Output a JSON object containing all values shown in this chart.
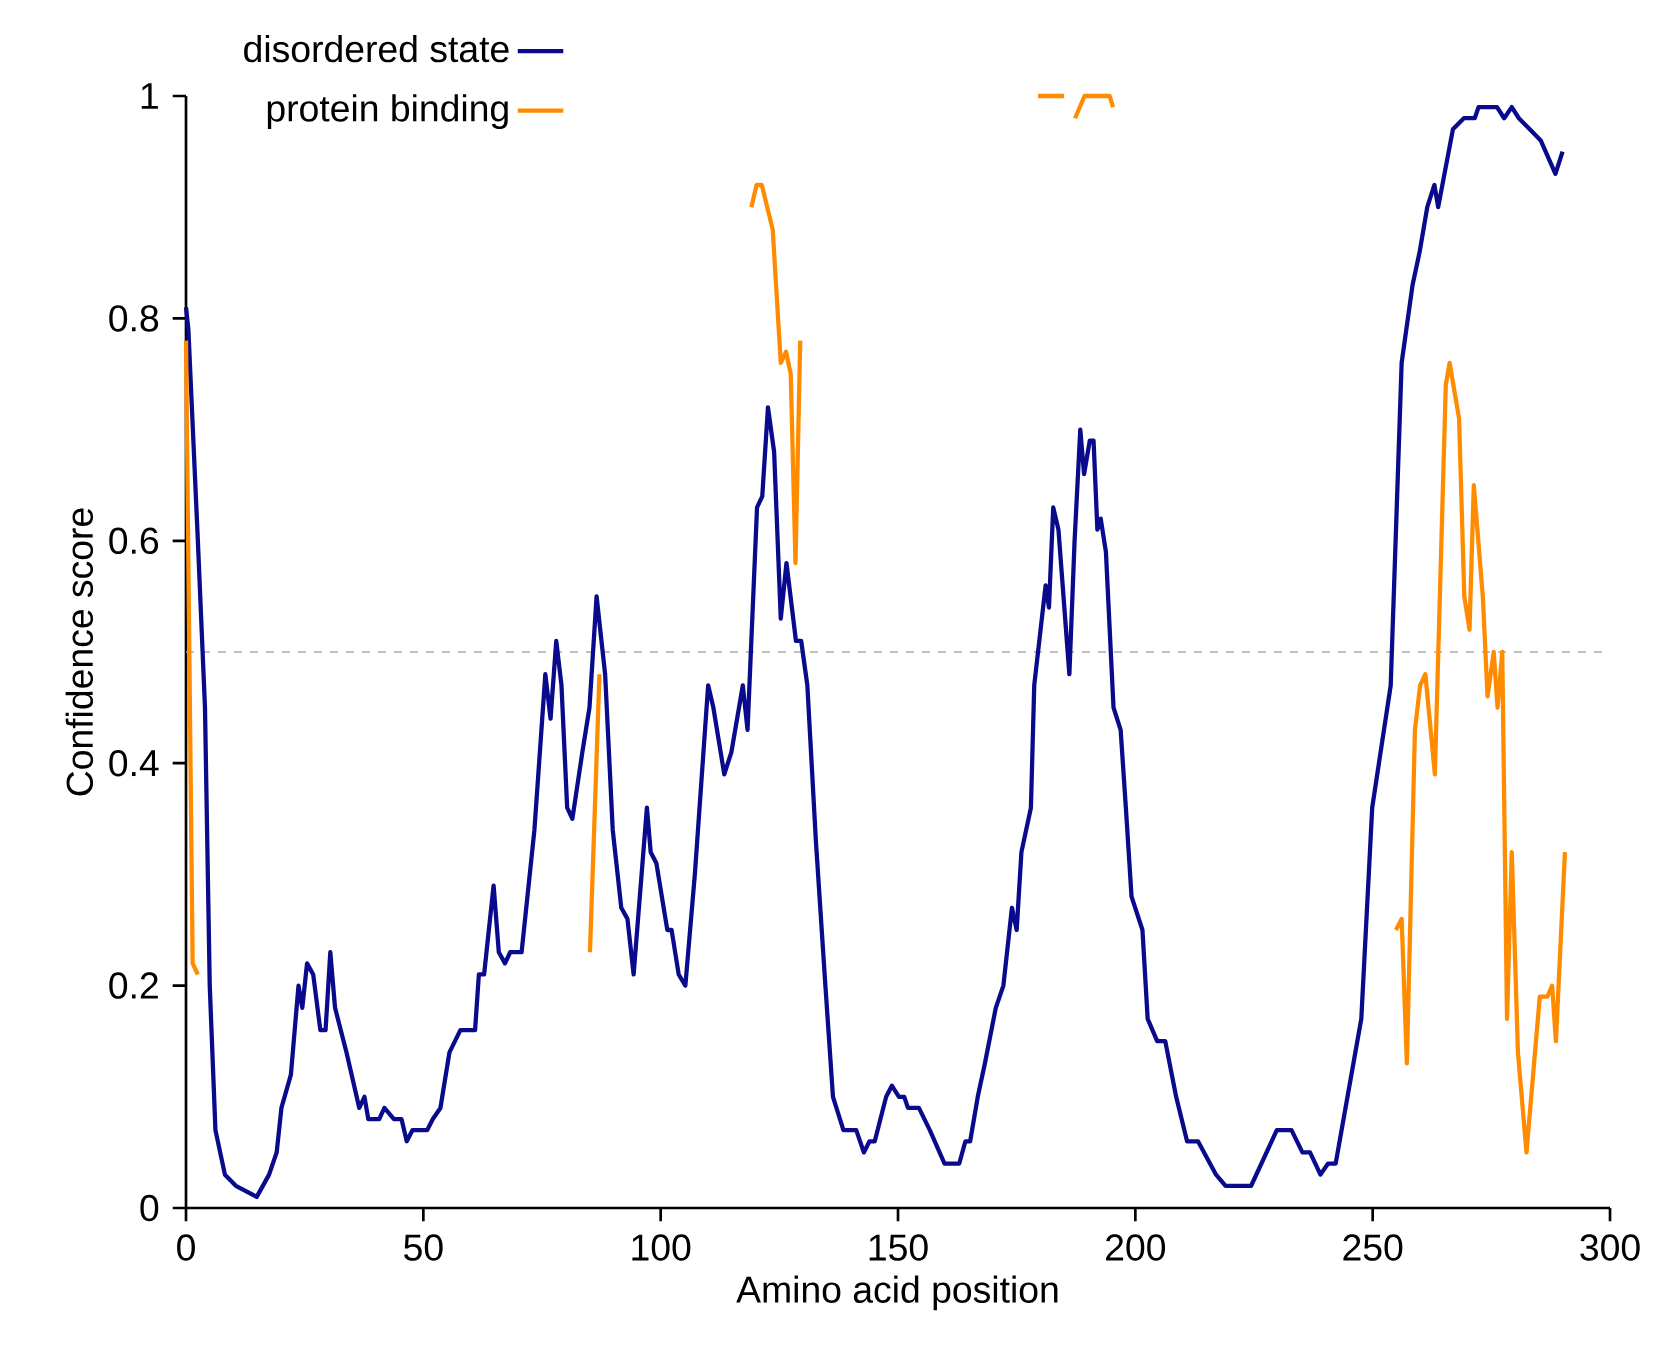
{
  "chart_data": {
    "type": "line",
    "xlabel": "Amino acid position",
    "ylabel": "Confidence score",
    "xlim": [
      0,
      300
    ],
    "ylim": [
      0,
      1
    ],
    "xticks": [
      0,
      50,
      100,
      150,
      200,
      250,
      300
    ],
    "yticks": [
      0,
      0.2,
      0.4,
      0.6,
      0.8,
      1
    ],
    "legend": "top left",
    "ref_lines": [
      {
        "axis": "y",
        "value": 0.5,
        "color": "#aaaaaa",
        "line_style": "dashed"
      }
    ],
    "series": [
      {
        "name": "disordered state",
        "color": "#0a0a8c",
        "x": [
          0,
          0.5,
          2.5,
          4,
          5,
          6.2,
          8.2,
          10.5,
          14.9,
          17.5,
          19.1,
          20.1,
          22.1,
          23.7,
          24.5,
          25.5,
          26.8,
          28.3,
          29.4,
          30.4,
          31.4,
          33.8,
          36.5,
          37.6,
          38.4,
          40.7,
          41.8,
          43.8,
          45.4,
          46.5,
          47.7,
          50.8,
          52,
          53.6,
          55.5,
          57.8,
          60.9,
          61.7,
          62.8,
          64.8,
          65.9,
          67.2,
          68.3,
          70.7,
          73.4,
          75.7,
          76.8,
          78,
          79.1,
          80.3,
          81.4,
          83.5,
          85,
          86.5,
          88.3,
          89.9,
          91.7,
          93,
          94.3,
          97.1,
          97.9,
          99.1,
          101.4,
          102.3,
          103.8,
          105.2,
          107.2,
          110,
          111.1,
          113.4,
          114.9,
          117.3,
          118.3,
          120.3,
          121.4,
          122.6,
          123.9,
          125.3,
          126.5,
          128.5,
          129.6,
          130.9,
          132.7,
          134.7,
          136.3,
          138.5,
          141.2,
          142.8,
          144,
          145.1,
          147.5,
          148.7,
          150.2,
          151.3,
          152.1,
          154.4,
          156.7,
          159.8,
          162.9,
          164.2,
          165.2,
          166.8,
          168.3,
          170.6,
          172.2,
          174,
          175,
          176,
          178,
          178.7,
          181.1,
          181.8,
          182.7,
          183.8,
          186.1,
          187.2,
          188.4,
          189.2,
          190.4,
          191.2,
          192,
          192.7,
          193.8,
          195.4,
          196.9,
          198,
          199.2,
          201.5,
          202.6,
          204.6,
          206.3,
          208.6,
          210.9,
          213.2,
          217,
          219,
          224.4,
          229.8,
          232.9,
          235.2,
          236.8,
          239,
          240.6,
          242.2,
          247.6,
          249.9,
          253.8,
          256.1,
          258.4,
          259.9,
          261.5,
          263,
          263.8,
          266.9,
          269.2,
          271.5,
          272.3,
          276.2,
          277.7,
          279.3,
          280.8,
          283.1,
          285.4,
          288.5,
          290
        ],
        "values": [
          0.81,
          0.79,
          0.6,
          0.45,
          0.2,
          0.07,
          0.03,
          0.02,
          0.01,
          0.03,
          0.05,
          0.09,
          0.12,
          0.2,
          0.18,
          0.22,
          0.21,
          0.16,
          0.16,
          0.23,
          0.18,
          0.14,
          0.09,
          0.1,
          0.08,
          0.08,
          0.09,
          0.08,
          0.08,
          0.06,
          0.07,
          0.07,
          0.08,
          0.09,
          0.14,
          0.16,
          0.16,
          0.21,
          0.21,
          0.29,
          0.23,
          0.22,
          0.23,
          0.23,
          0.34,
          0.48,
          0.44,
          0.51,
          0.47,
          0.36,
          0.35,
          0.41,
          0.45,
          0.55,
          0.48,
          0.34,
          0.27,
          0.26,
          0.21,
          0.36,
          0.32,
          0.31,
          0.25,
          0.25,
          0.21,
          0.2,
          0.3,
          0.47,
          0.45,
          0.39,
          0.41,
          0.47,
          0.43,
          0.63,
          0.64,
          0.72,
          0.68,
          0.53,
          0.58,
          0.51,
          0.51,
          0.47,
          0.33,
          0.2,
          0.1,
          0.07,
          0.07,
          0.05,
          0.06,
          0.06,
          0.1,
          0.11,
          0.1,
          0.1,
          0.09,
          0.09,
          0.07,
          0.04,
          0.04,
          0.06,
          0.06,
          0.1,
          0.13,
          0.18,
          0.2,
          0.27,
          0.25,
          0.32,
          0.36,
          0.47,
          0.56,
          0.54,
          0.63,
          0.61,
          0.48,
          0.6,
          0.7,
          0.66,
          0.69,
          0.69,
          0.61,
          0.62,
          0.59,
          0.45,
          0.43,
          0.36,
          0.28,
          0.25,
          0.17,
          0.15,
          0.15,
          0.1,
          0.06,
          0.06,
          0.03,
          0.02,
          0.02,
          0.07,
          0.07,
          0.05,
          0.05,
          0.03,
          0.04,
          0.04,
          0.17,
          0.36,
          0.47,
          0.76,
          0.83,
          0.86,
          0.9,
          0.92,
          0.9,
          0.97,
          0.98,
          0.98,
          0.99,
          0.99,
          0.98,
          0.99,
          0.98,
          0.97,
          0.96,
          0.93,
          0.95
        ]
      },
      {
        "name": "protein binding",
        "color": "#ff8c00",
        "x": [
          0,
          1.4,
          2.5,
          40,
          85.1,
          87.1,
          100,
          119.1,
          120.2,
          121.3,
          123.6,
          125.3,
          126.4,
          127.4,
          128.4,
          129.4,
          150,
          179.5,
          185,
          186,
          187.3,
          189.3,
          194.6,
          195.3,
          220,
          254.9,
          256.1,
          257.2,
          258.9,
          260,
          261.1,
          263.1,
          265.4,
          266.2,
          268.2,
          269.3,
          270.4,
          271.3,
          273.2,
          274.2,
          275.5,
          276.3,
          277.3,
          278.3,
          279.3,
          280.6,
          282.4,
          284,
          285.2,
          286.8,
          287.8,
          288.6,
          290.5
        ],
        "values": [
          0.78,
          0.22,
          0.21,
          null,
          0.23,
          0.48,
          null,
          0.9,
          0.92,
          0.92,
          0.88,
          0.76,
          0.77,
          0.75,
          0.58,
          0.78,
          null,
          1,
          1,
          null,
          0.98,
          1,
          1,
          0.99,
          null,
          0.25,
          0.26,
          0.13,
          0.43,
          0.47,
          0.48,
          0.39,
          0.74,
          0.76,
          0.71,
          0.55,
          0.52,
          0.65,
          0.55,
          0.46,
          0.5,
          0.45,
          0.5,
          0.17,
          0.32,
          0.14,
          0.05,
          0.13,
          0.19,
          0.19,
          0.2,
          0.15,
          0.32
        ]
      }
    ]
  }
}
